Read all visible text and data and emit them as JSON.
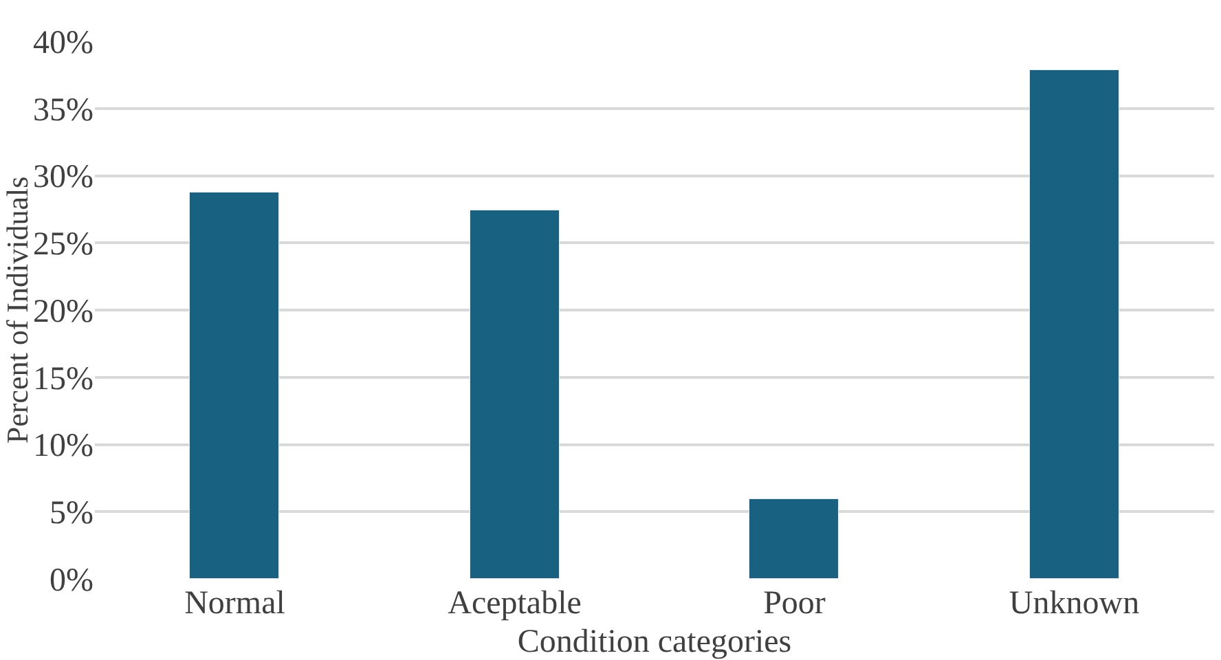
{
  "chart_data": {
    "type": "bar",
    "xlabel": "Condition categories",
    "ylabel": "Percent of Individuals",
    "categories": [
      "Normal",
      "Aceptable",
      "Poor",
      "Unknown"
    ],
    "values": [
      28.7,
      27.4,
      5.9,
      37.9
    ],
    "color": "#186180",
    "ylim": [
      0,
      40
    ],
    "yticks": [
      {
        "value": 0,
        "label": "0%"
      },
      {
        "value": 5,
        "label": "5%"
      },
      {
        "value": 10,
        "label": "10%"
      },
      {
        "value": 15,
        "label": "15%"
      },
      {
        "value": 20,
        "label": "20%"
      },
      {
        "value": 25,
        "label": "25%"
      },
      {
        "value": 30,
        "label": "30%"
      },
      {
        "value": 35,
        "label": "35%"
      },
      {
        "value": 40,
        "label": "40%"
      }
    ],
    "grid": "y",
    "legend": false
  }
}
